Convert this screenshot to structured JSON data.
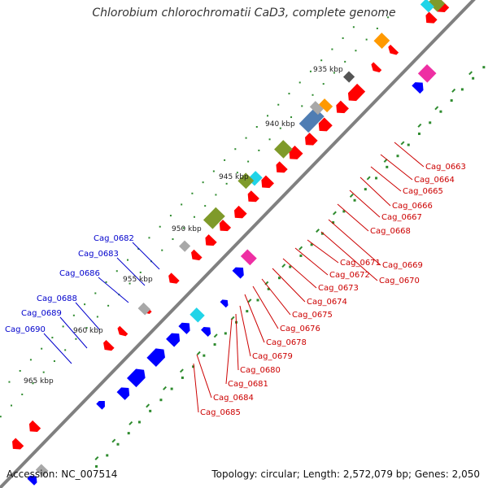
{
  "title": "Chlorobium chlorochromatii CaD3, complete genome",
  "accession_label": "Accession: NC_007514",
  "summary": "Topology: circular; Length: 2,572,079 bp; Genes: 2,050",
  "kbp_labels": [
    "935 kbp",
    "940 kbp",
    "945 kbp",
    "950 kbp",
    "955 kbp",
    "960 kbp",
    "965 kbp"
  ],
  "left_gene_labels": [
    "Cag_0682",
    "Cag_0683",
    "Cag_0686",
    "Cag_0688",
    "Cag_0689",
    "Cag_0690"
  ],
  "right_gene_labels": [
    "Cag_0663",
    "Cag_0664",
    "Cag_0665",
    "Cag_0666",
    "Cag_0667",
    "Cag_0668",
    "Cag_0669",
    "Cag_0670",
    "Cag_0671",
    "Cag_0672",
    "Cag_0673",
    "Cag_0674",
    "Cag_0675",
    "Cag_0676",
    "Cag_0678",
    "Cag_0679",
    "Cag_0680",
    "Cag_0681",
    "Cag_0684",
    "Cag_0685"
  ],
  "colors": {
    "backbone": "#808080",
    "forward_gene": "#ff0000",
    "reverse_gene": "#0000ff",
    "label_left": "#0000cc",
    "label_right": "#cc0000",
    "tick": "#2e8b2e",
    "olive": "#7f9a2a",
    "cyan": "#21d4e8",
    "magenta": "#ee2fa3",
    "orange": "#ff9900",
    "steel": "#4f7db3",
    "gray": "#a8a8a8"
  }
}
